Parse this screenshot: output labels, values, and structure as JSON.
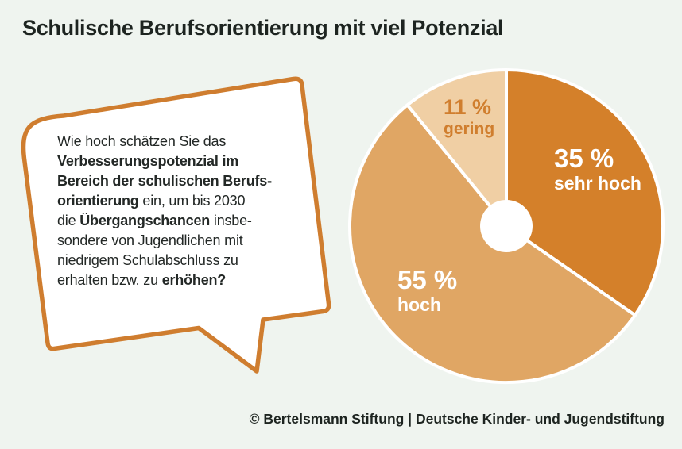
{
  "title": "Schulische Berufsorientierung mit viel Potenzial",
  "question_bubble": {
    "segments": [
      {
        "text": "Wie hoch schätzen Sie das",
        "bold": false,
        "br": true
      },
      {
        "text": "Verbesserungspotenzial im",
        "bold": true,
        "br": true
      },
      {
        "text": "Bereich der schulischen Berufs-",
        "bold": true,
        "br": true
      },
      {
        "text": "orientierung",
        "bold": true
      },
      {
        "text": " ein, um bis 2030",
        "bold": false,
        "br": true
      },
      {
        "text": "die ",
        "bold": false
      },
      {
        "text": "Übergangschancen",
        "bold": true
      },
      {
        "text": " insbe-",
        "bold": false,
        "br": true
      },
      {
        "text": "sondere von Jugendlichen mit",
        "bold": false,
        "br": true
      },
      {
        "text": "niedrigem Schulabschluss zu",
        "bold": false,
        "br": true
      },
      {
        "text": "erhalten bzw. zu ",
        "bold": false
      },
      {
        "text": "erhöhen?",
        "bold": true
      }
    ]
  },
  "chart_data": {
    "type": "pie",
    "title": "Schulische Berufsorientierung mit viel Potenzial",
    "categories": [
      "sehr hoch",
      "hoch",
      "gering"
    ],
    "values": [
      35,
      55,
      11
    ],
    "unit": "%",
    "colors": [
      "#d4802a",
      "#e0a664",
      "#f0cfa4"
    ],
    "donut_hole": true,
    "start_angle_deg": 0,
    "direction": "clockwise",
    "legend": "labels inside slices"
  },
  "pie_labels": [
    {
      "value": "35 %",
      "name": "sehr hoch"
    },
    {
      "value": "55 %",
      "name": "hoch"
    },
    {
      "value": "11 %",
      "name": "gering"
    }
  ],
  "footer": {
    "attribution": "© Bertelsmann Stiftung | Deutsche Kinder- und Jugendstiftung"
  },
  "colors": {
    "background": "#eff4ef",
    "text": "#1d2420",
    "bubble_border": "#cf7d2f",
    "bubble_fill": "#ffffff",
    "slice_sehr_hoch": "#d4802a",
    "slice_hoch": "#e0a664",
    "slice_gering": "#f0cfa4",
    "label_orange": "#d07e2e",
    "label_white": "#ffffff"
  }
}
